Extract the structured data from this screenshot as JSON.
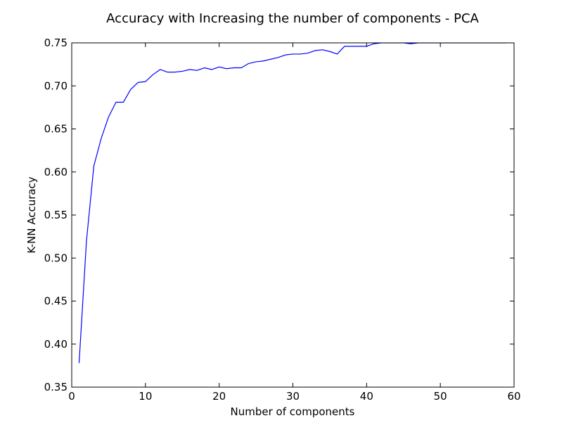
{
  "chart_data": {
    "type": "line",
    "title": "Accuracy with Increasing the number of components - PCA",
    "xlabel": "Number of components",
    "ylabel": "K-NN Accuracy",
    "xlim": [
      0,
      60
    ],
    "ylim": [
      0.35,
      0.75
    ],
    "x_ticks": [
      "0",
      "10",
      "20",
      "30",
      "40",
      "50",
      "60"
    ],
    "y_ticks": [
      "0.35",
      "0.40",
      "0.45",
      "0.50",
      "0.55",
      "0.60",
      "0.65",
      "0.70",
      "0.75"
    ],
    "grid": false,
    "series": [
      {
        "color": "#0000ff",
        "x": [
          1,
          2,
          3,
          4,
          5,
          6,
          7,
          8,
          9,
          10,
          11,
          12,
          13,
          14,
          15,
          16,
          17,
          18,
          19,
          20,
          21,
          22,
          23,
          24,
          25,
          26,
          27,
          28,
          29,
          30,
          31,
          32,
          33,
          34,
          35,
          36,
          37,
          38,
          39,
          40,
          41,
          42,
          43,
          44,
          45,
          46,
          47,
          48,
          49,
          50,
          51,
          52,
          53,
          54,
          55,
          56,
          57,
          58,
          59
        ],
        "values": [
          0.378,
          0.52,
          0.607,
          0.639,
          0.664,
          0.681,
          0.681,
          0.696,
          0.704,
          0.705,
          0.713,
          0.719,
          0.716,
          0.716,
          0.717,
          0.719,
          0.718,
          0.721,
          0.719,
          0.722,
          0.72,
          0.721,
          0.721,
          0.726,
          0.728,
          0.729,
          0.731,
          0.733,
          0.736,
          0.737,
          0.737,
          0.738,
          0.741,
          0.742,
          0.74,
          0.737,
          0.746,
          0.746,
          0.746,
          0.746,
          0.749,
          0.75,
          0.75,
          0.75,
          0.75,
          0.749,
          0.75,
          0.75,
          0.75,
          0.75,
          0.75,
          0.75,
          0.75,
          0.75,
          0.75,
          0.75,
          0.75,
          0.75,
          0.75
        ]
      }
    ]
  }
}
